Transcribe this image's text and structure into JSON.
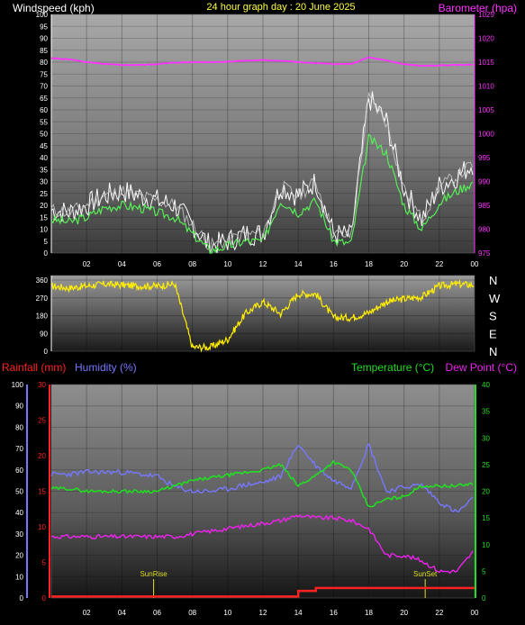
{
  "header": {
    "wind_title": "Windspeed (kph)",
    "date_title": "24 hour graph day : 20 June 2025",
    "baro_title": "Barometer (hpa)"
  },
  "bottom_header": {
    "rain_title": "Rainfall (mm)",
    "hum_title": "Humidity (%)",
    "temp_title": "Temperature (°C)",
    "dew_title": "Dew Point (°C)"
  },
  "colors": {
    "wind": "#ffffff",
    "wind_avg": "#55ee55",
    "baro": "#ff33ff",
    "dir": "#ffee00",
    "rain": "#ff2222",
    "hum": "#7777ff",
    "temp": "#22dd22",
    "dew": "#ee22ee",
    "sun": "#dddd22",
    "axis_text": "#ffffff"
  },
  "x_ticks": [
    "02",
    "04",
    "06",
    "08",
    "10",
    "12",
    "14",
    "16",
    "18",
    "20",
    "22",
    "00"
  ],
  "chart_data": [
    {
      "type": "line",
      "title": "24 hour graph day : 20 June 2025",
      "xlabel": "",
      "ylabel": "Windspeed (kph)",
      "ylim": [
        0,
        100
      ],
      "y_ticks": [
        "0",
        "5",
        "10",
        "15",
        "20",
        "25",
        "30",
        "35",
        "40",
        "45",
        "50",
        "55",
        "60",
        "65",
        "70",
        "75",
        "80",
        "85",
        "90",
        "95",
        "100"
      ],
      "y2label": "Barometer (hpa)",
      "y2lim": [
        975,
        1025
      ],
      "y2_ticks": [
        "975",
        "980",
        "985",
        "990",
        "995",
        "1000",
        "1005",
        "1010",
        "1015",
        "1020",
        "1025"
      ],
      "x": [
        0,
        1,
        2,
        3,
        4,
        5,
        6,
        7,
        8,
        9,
        10,
        11,
        12,
        13,
        14,
        15,
        16,
        17,
        18,
        19,
        20,
        21,
        22,
        23,
        24
      ],
      "series": [
        {
          "name": "Windspeed gust",
          "axis": "left",
          "values": [
            18,
            17,
            20,
            24,
            26,
            24,
            22,
            20,
            12,
            3,
            5,
            8,
            8,
            28,
            24,
            30,
            8,
            7,
            65,
            55,
            27,
            14,
            28,
            32,
            38
          ]
        },
        {
          "name": "Windspeed avg",
          "axis": "left",
          "values": [
            14,
            13,
            15,
            19,
            20,
            19,
            17,
            15,
            8,
            1,
            3,
            5,
            5,
            22,
            17,
            22,
            5,
            4,
            48,
            42,
            20,
            10,
            21,
            26,
            30
          ]
        },
        {
          "name": "Barometer",
          "axis": "right",
          "values": [
            1015.8,
            1015.6,
            1015.0,
            1014.6,
            1014.4,
            1014.4,
            1014.6,
            1014.9,
            1015.0,
            1015.0,
            1015.1,
            1015.3,
            1015.4,
            1015.3,
            1015.0,
            1014.8,
            1014.6,
            1014.6,
            1016.0,
            1015.3,
            1014.6,
            1014.2,
            1014.3,
            1014.4,
            1014.5
          ]
        }
      ]
    },
    {
      "type": "line",
      "title": "",
      "ylabel": "",
      "ylim": [
        0,
        360
      ],
      "y_ticks": [
        "0",
        "90",
        "180",
        "270",
        "360"
      ],
      "right_labels": [
        "N",
        "W",
        "S",
        "E",
        "N"
      ],
      "x": [
        0,
        1,
        2,
        3,
        4,
        5,
        6,
        7,
        8,
        9,
        10,
        11,
        12,
        13,
        14,
        15,
        16,
        17,
        18,
        19,
        20,
        21,
        22,
        23,
        24
      ],
      "series": [
        {
          "name": "Wind direction",
          "values": [
            330,
            320,
            330,
            340,
            335,
            330,
            330,
            340,
            20,
            20,
            60,
            190,
            250,
            190,
            290,
            290,
            170,
            170,
            195,
            250,
            265,
            275,
            330,
            340,
            335
          ]
        }
      ]
    },
    {
      "type": "line",
      "title": "",
      "ylabel": "Rainfall (mm) / Humidity (%)",
      "rain_lim": [
        0,
        30
      ],
      "rain_ticks": [
        "0",
        "5",
        "10",
        "15",
        "20",
        "25",
        "30"
      ],
      "hum_lim": [
        0,
        100
      ],
      "hum_ticks": [
        "0",
        "10",
        "20",
        "30",
        "40",
        "50",
        "60",
        "70",
        "80",
        "90",
        "100"
      ],
      "temp_lim": [
        0,
        40
      ],
      "temp_ticks": [
        "0",
        "5",
        "10",
        "15",
        "20",
        "25",
        "30",
        "35",
        "40"
      ],
      "annotations": [
        "SunRise",
        "SunSet"
      ],
      "sunrise_x": 5.8,
      "sunset_x": 21.2,
      "x": [
        0,
        1,
        2,
        3,
        4,
        5,
        6,
        7,
        8,
        9,
        10,
        11,
        12,
        13,
        14,
        15,
        16,
        17,
        18,
        19,
        20,
        21,
        22,
        23,
        24
      ],
      "series": [
        {
          "name": "Rainfall",
          "axis": "rain",
          "values": [
            0.2,
            0.2,
            0.2,
            0.2,
            0.2,
            0.2,
            0.2,
            0.2,
            0.2,
            0.2,
            0.2,
            0.2,
            0.2,
            0.2,
            1.0,
            1.4,
            1.4,
            1.4,
            1.4,
            1.4,
            1.4,
            1.4,
            1.4,
            1.4,
            1.4
          ]
        },
        {
          "name": "Humidity",
          "axis": "hum",
          "values": [
            58,
            58,
            59,
            59,
            59,
            58,
            57,
            52,
            50,
            50,
            51,
            53,
            54,
            57,
            72,
            62,
            55,
            52,
            72,
            50,
            52,
            53,
            45,
            40,
            47
          ]
        },
        {
          "name": "Temperature",
          "axis": "temp",
          "values": [
            20.5,
            20.5,
            20,
            20,
            20,
            20,
            20,
            21,
            22,
            22.5,
            23,
            23.5,
            24,
            25,
            21,
            23,
            25.5,
            24,
            17,
            18.5,
            19,
            21,
            21,
            21,
            21.5
          ]
        },
        {
          "name": "Dew Point",
          "axis": "temp",
          "values": [
            11.5,
            11.5,
            11.5,
            11.5,
            11.5,
            11.5,
            11.5,
            11.5,
            12,
            12.5,
            13,
            13.5,
            14,
            14.5,
            15.5,
            15,
            15,
            14.5,
            13,
            8,
            8,
            7,
            5,
            5,
            9
          ]
        }
      ]
    }
  ]
}
